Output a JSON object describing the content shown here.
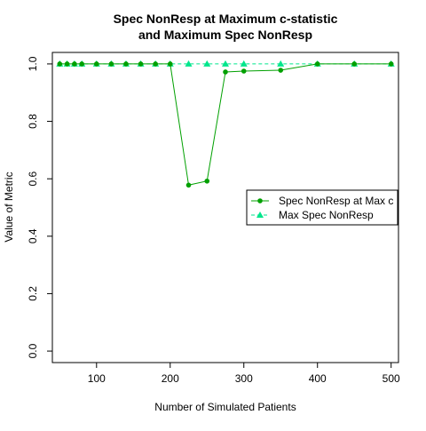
{
  "chart_data": {
    "type": "line",
    "title_lines": [
      "Spec NonResp at Maximum c-statistic",
      "and Maximum Spec NonResp"
    ],
    "xlabel": "Number of Simulated Patients",
    "ylabel": "Value of Metric",
    "xlim": [
      40,
      510
    ],
    "ylim": [
      -0.04,
      1.04
    ],
    "xticks": [
      100,
      200,
      300,
      400,
      500
    ],
    "yticks": [
      0.0,
      0.2,
      0.4,
      0.6,
      0.8,
      1.0
    ],
    "xtick_labels": [
      "100",
      "200",
      "300",
      "400",
      "500"
    ],
    "ytick_labels": [
      "0.0",
      "0.2",
      "0.4",
      "0.6",
      "0.8",
      "1.0"
    ],
    "x": [
      50,
      60,
      70,
      80,
      100,
      120,
      140,
      160,
      180,
      200,
      225,
      250,
      275,
      300,
      350,
      400,
      450,
      500
    ],
    "series": [
      {
        "name": "Spec NonResp at Max c",
        "color": "#00a000",
        "line_style": "solid",
        "marker": "circle",
        "values": [
          1.0,
          1.0,
          1.0,
          1.0,
          1.0,
          1.0,
          1.0,
          1.0,
          1.0,
          1.0,
          0.578,
          0.592,
          0.972,
          0.975,
          0.978,
          1.0,
          1.0,
          1.0
        ]
      },
      {
        "name": "Max Spec NonResp",
        "color": "#00e68c",
        "line_style": "dashed",
        "marker": "triangle",
        "values": [
          1.0,
          1.0,
          1.0,
          1.0,
          1.0,
          1.0,
          1.0,
          1.0,
          1.0,
          1.0,
          1.0,
          1.0,
          1.0,
          1.0,
          1.0,
          1.0,
          1.0,
          1.0
        ]
      }
    ],
    "legend_position": "right"
  }
}
